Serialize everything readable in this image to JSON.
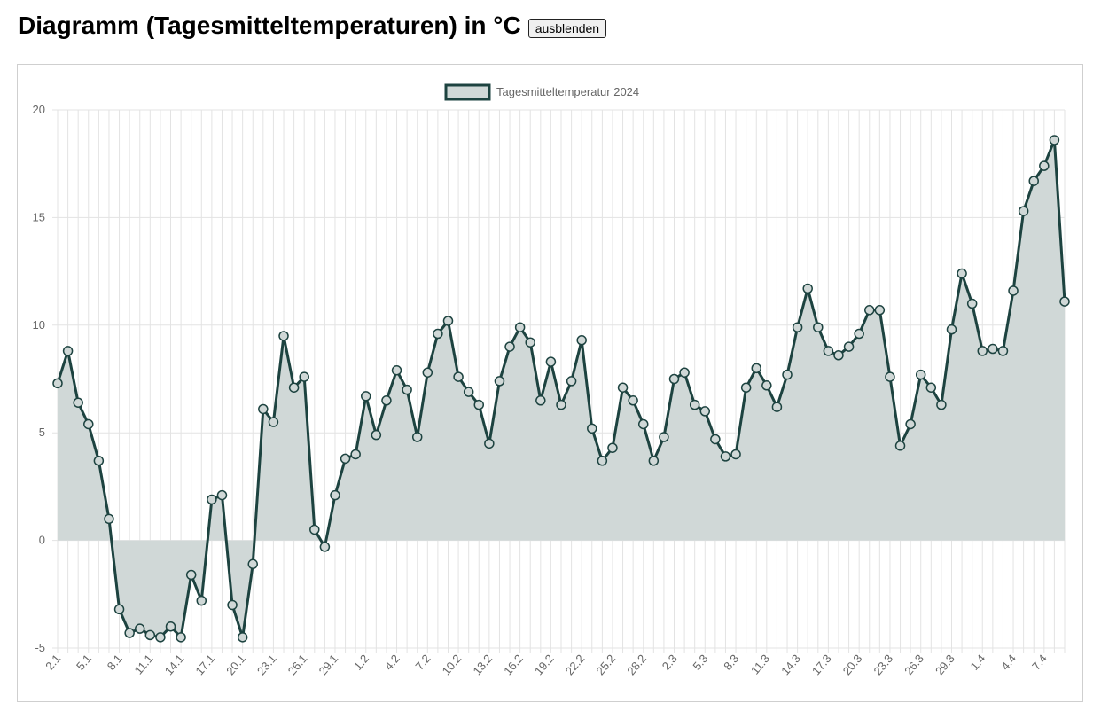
{
  "header": {
    "title": "Diagramm (Tagesmitteltemperaturen) in °C",
    "toggle_label": "ausblenden"
  },
  "colors": {
    "line": "#1d4340",
    "fill": "#d0d8d7",
    "grid": "#e3e3e3",
    "axis_text": "#666666"
  },
  "chart_data": {
    "type": "area",
    "legend_position": "top-center",
    "grid": true,
    "ylim": [
      -5,
      20
    ],
    "yticks": [
      -5,
      0,
      5,
      10,
      15,
      20
    ],
    "x_labels": [
      "2.1",
      "5.1",
      "8.1",
      "11.1",
      "14.1",
      "17.1",
      "20.1",
      "23.1",
      "26.1",
      "29.1",
      "1.2",
      "4.2",
      "7.2",
      "10.2",
      "13.2",
      "16.2",
      "19.2",
      "22.2",
      "25.2",
      "28.2",
      "2.3",
      "5.3",
      "8.3",
      "11.3",
      "14.3",
      "17.3",
      "20.3",
      "23.3",
      "26.3",
      "29.3",
      "1.4",
      "4.4",
      "7.4"
    ],
    "series": [
      {
        "name": "Tagesmitteltemperatur 2024",
        "values": [
          7.3,
          8.8,
          6.4,
          5.4,
          3.7,
          1.0,
          -3.2,
          -4.3,
          -4.1,
          -4.4,
          -4.5,
          -4.0,
          -4.5,
          -1.6,
          -2.8,
          1.9,
          2.1,
          -3.0,
          -4.5,
          -1.1,
          6.1,
          5.5,
          9.5,
          7.1,
          7.6,
          0.5,
          -0.3,
          2.1,
          3.8,
          4.0,
          6.7,
          4.9,
          6.5,
          7.9,
          7.0,
          4.8,
          7.8,
          9.6,
          10.2,
          7.6,
          6.9,
          6.3,
          4.5,
          7.4,
          9.0,
          9.9,
          9.2,
          6.5,
          8.3,
          6.3,
          7.4,
          9.3,
          5.2,
          3.7,
          4.3,
          7.1,
          6.5,
          5.4,
          3.7,
          4.8,
          7.5,
          7.8,
          6.3,
          6.0,
          4.7,
          3.9,
          4.0,
          7.1,
          8.0,
          7.2,
          6.2,
          7.7,
          9.9,
          11.7,
          9.9,
          8.8,
          8.6,
          9.0,
          9.6,
          10.7,
          10.7,
          7.6,
          4.4,
          5.4,
          7.7,
          7.1,
          6.3,
          9.8,
          12.4,
          11.0,
          8.8,
          8.9,
          8.8,
          11.6,
          15.3,
          16.7,
          17.4,
          18.6,
          11.1
        ]
      }
    ]
  }
}
